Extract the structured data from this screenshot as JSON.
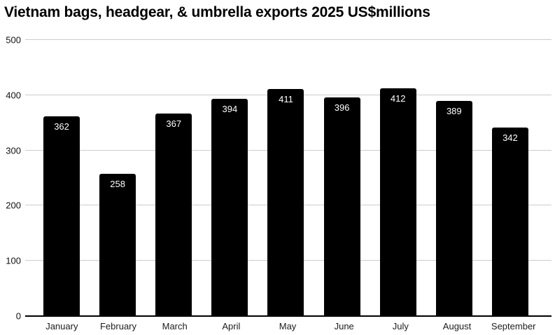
{
  "title": "Vietnam bags, headgear, & umbrella exports 2025 US$millions",
  "chart_data": {
    "type": "bar",
    "title": "Vietnam bags, headgear, & umbrella exports 2025 US$millions",
    "categories": [
      "January",
      "February",
      "March",
      "April",
      "May",
      "June",
      "July",
      "August",
      "September"
    ],
    "values": [
      362,
      258,
      367,
      394,
      411,
      396,
      412,
      389,
      342
    ],
    "xlabel": "",
    "ylabel": "",
    "ylim": [
      0,
      500
    ],
    "yticks": [
      0,
      100,
      200,
      300,
      400,
      500
    ],
    "grid": true,
    "legend": "none",
    "bar_color": "#000000",
    "value_label_color": "#ffffff",
    "gridline_color": "#cccccc",
    "axis_line_color": "#000000",
    "background_color": "#ffffff"
  }
}
